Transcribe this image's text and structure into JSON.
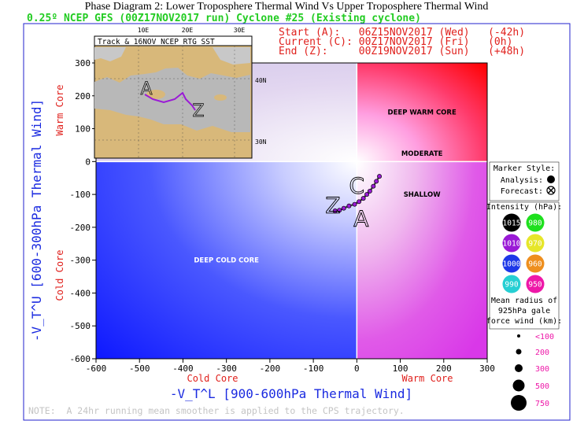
{
  "title": "Phase Diagram 2: Lower Troposphere Thermal Wind Vs Upper Troposphere Thermal Wind",
  "subtitle": "0.25º NCEP GFS (00Z17NOV2017 run) Cyclone #25 (Existing cyclone)",
  "times": {
    "start": "Start (A):   06Z15NOV2017 (Wed)   (-42h)",
    "current": "Current (C): 00Z17NOV2017 (Fri)   (0h)",
    "end": "End (Z):     00Z19NOV2017 (Sun)   (+48h)"
  },
  "note": "NOTE:  A 24hr running mean smoother is applied to the CPS trajectory.",
  "map_inset": {
    "title": "Track & 16NOV NCEP RTG SST",
    "lon_labels": [
      "10E",
      "20E",
      "30E"
    ],
    "lat_labels": [
      "40N",
      "30N"
    ]
  },
  "legend": {
    "marker_style_title": "Marker Style:",
    "analysis_label": "Analysis:",
    "forecast_label": "Forecast:",
    "intensity_title": "Intensity (hPa):",
    "intensity": [
      {
        "label": "1015",
        "color": "#000000"
      },
      {
        "label": "980",
        "color": "#1ee01e"
      },
      {
        "label": "1010",
        "color": "#9a1ad6"
      },
      {
        "label": "970",
        "color": "#e6e62a"
      },
      {
        "label": "1000",
        "color": "#1e38e8"
      },
      {
        "label": "960",
        "color": "#ee8f1e"
      },
      {
        "label": "990",
        "color": "#26cfd3"
      },
      {
        "label": "950",
        "color": "#ee18a8"
      }
    ],
    "radius_title_1": "Mean radius of",
    "radius_title_2": "925hPa gale",
    "radius_title_3": "force wind (km):",
    "radius": [
      "<100",
      "200",
      "300",
      "500",
      "750"
    ]
  },
  "chart_data": {
    "type": "scatter",
    "title": "Phase Diagram 2: Lower Troposphere Thermal Wind Vs Upper Troposphere Thermal Wind",
    "xlabel": "-V_T^L [900-600hPa Thermal Wind]",
    "ylabel": "-V_T^U [600-300hPa Thermal Wind]",
    "xlim": [
      -600,
      300
    ],
    "ylim": [
      -600,
      300
    ],
    "xticks": [
      -600,
      -500,
      -400,
      -300,
      -200,
      -100,
      0,
      100,
      200,
      300
    ],
    "yticks": [
      -600,
      -500,
      -400,
      -300,
      -200,
      -100,
      0,
      100,
      200,
      300
    ],
    "x_side_labels": [
      "Cold Core",
      "Warm Core"
    ],
    "y_side_labels": [
      "Cold Core",
      "Warm Core"
    ],
    "region_labels": [
      {
        "text": "DEEP WARM CORE",
        "x": 150,
        "y": 150
      },
      {
        "text": "MODERATE",
        "x": 150,
        "y": 25
      },
      {
        "text": "SHALLOW",
        "x": 150,
        "y": -100
      },
      {
        "text": "DEEP COLD CORE",
        "x": -300,
        "y": -300
      }
    ],
    "track": {
      "x": [
        -50,
        -40,
        -30,
        -18,
        -5,
        5,
        15,
        23,
        30,
        38,
        45,
        52
      ],
      "y": [
        -150,
        -148,
        -142,
        -135,
        -130,
        -122,
        -112,
        -100,
        -90,
        -75,
        -60,
        -45
      ]
    },
    "markers": [
      {
        "label": "A",
        "x": 10,
        "y": -175
      },
      {
        "label": "C",
        "x": 0,
        "y": -75
      },
      {
        "label": "Z",
        "x": -55,
        "y": -135
      }
    ]
  }
}
